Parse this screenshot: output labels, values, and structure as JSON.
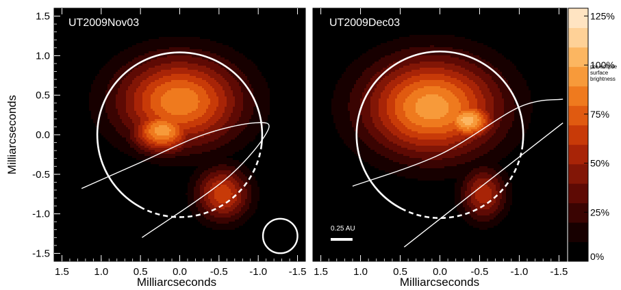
{
  "chart_data": [
    {
      "type": "heatmap",
      "panel": "left",
      "title": "UT2009Nov03",
      "xlabel": "Milliarcseconds",
      "ylabel": "Milliarcseconds",
      "xlim": [
        1.6,
        -1.6
      ],
      "ylim": [
        -1.6,
        1.6
      ],
      "x_ticks": [
        "1.5",
        "1.0",
        "0.5",
        "0.0",
        "-0.5",
        "-1.0",
        "-1.5"
      ],
      "x_tick_values": [
        1.5,
        1.0,
        0.5,
        0.0,
        -0.5,
        -1.0,
        -1.5
      ],
      "y_ticks": [
        "1.5",
        "1.0",
        "0.5",
        "0.0",
        "-0.5",
        "-1.0",
        "-1.5"
      ],
      "y_tick_values": [
        1.5,
        1.0,
        0.5,
        0.0,
        -0.5,
        -1.0,
        -1.5
      ],
      "stellar_disk": {
        "center": [
          0.0,
          0.0
        ],
        "radius": 1.05,
        "dashed_arc": "lower-right"
      },
      "beam": {
        "center": [
          -1.28,
          -1.28
        ],
        "radius": 0.22
      },
      "orbit_track": [
        [
          1.25,
          -0.68
        ],
        [
          0.5,
          -0.35
        ],
        [
          -0.3,
          0.0
        ],
        [
          -0.95,
          0.15
        ],
        [
          -1.12,
          0.05
        ],
        [
          -0.6,
          -0.55
        ],
        [
          0.48,
          -1.3
        ]
      ],
      "blobs": [
        {
          "x": 0.0,
          "y": 0.42,
          "sx": 0.7,
          "sy": 0.5,
          "peak": 0.92
        },
        {
          "x": 0.22,
          "y": 0.05,
          "sx": 0.35,
          "sy": 0.25,
          "peak": 1.0
        },
        {
          "x": -0.55,
          "y": -0.75,
          "sx": 0.3,
          "sy": 0.3,
          "peak": 0.7
        }
      ]
    },
    {
      "type": "heatmap",
      "panel": "right",
      "title": "UT2009Dec03",
      "xlabel": "Milliarcseconds",
      "xlim": [
        1.6,
        -1.6
      ],
      "ylim": [
        -1.6,
        1.6
      ],
      "x_ticks": [
        "1.5",
        "1.0",
        "0.5",
        "0.0",
        "-0.5",
        "-1.0",
        "-1.5"
      ],
      "x_tick_values": [
        1.5,
        1.0,
        0.5,
        0.0,
        -0.5,
        -1.0,
        -1.5
      ],
      "stellar_disk": {
        "center": [
          0.0,
          0.0
        ],
        "radius": 1.05,
        "dashed_arc": "lower-right"
      },
      "scale_bar": {
        "label": "0.25 AU",
        "length_mas": 0.55
      },
      "orbit_track": [
        [
          1.1,
          -0.65
        ],
        [
          0.0,
          -0.25
        ],
        [
          -1.0,
          0.35
        ],
        [
          -1.55,
          0.45
        ]
      ],
      "orbit_track_2": [
        [
          0.45,
          -1.42
        ],
        [
          -0.4,
          -0.75
        ],
        [
          -1.55,
          0.15
        ]
      ],
      "blobs": [
        {
          "x": 0.1,
          "y": 0.35,
          "sx": 0.75,
          "sy": 0.55,
          "peak": 1.0
        },
        {
          "x": -0.35,
          "y": 0.18,
          "sx": 0.3,
          "sy": 0.22,
          "peak": 1.1
        },
        {
          "x": -0.55,
          "y": -0.75,
          "sx": 0.25,
          "sy": 0.3,
          "peak": 0.6
        }
      ]
    }
  ],
  "colorbar": {
    "labels": [
      "125%",
      "100%",
      "75%",
      "50%",
      "25%",
      "0%"
    ],
    "label_values": [
      125,
      100,
      75,
      50,
      25,
      0
    ],
    "note_lines": [
      "pre-eclipse",
      "surface",
      "brightness"
    ],
    "levels": [
      "#000000",
      "#170000",
      "#3a0402",
      "#5e0a04",
      "#821606",
      "#a82407",
      "#c83a08",
      "#e05a10",
      "#ef7a1e",
      "#f79a3a",
      "#fcb661",
      "#fed197",
      "#ffe4c2"
    ]
  }
}
